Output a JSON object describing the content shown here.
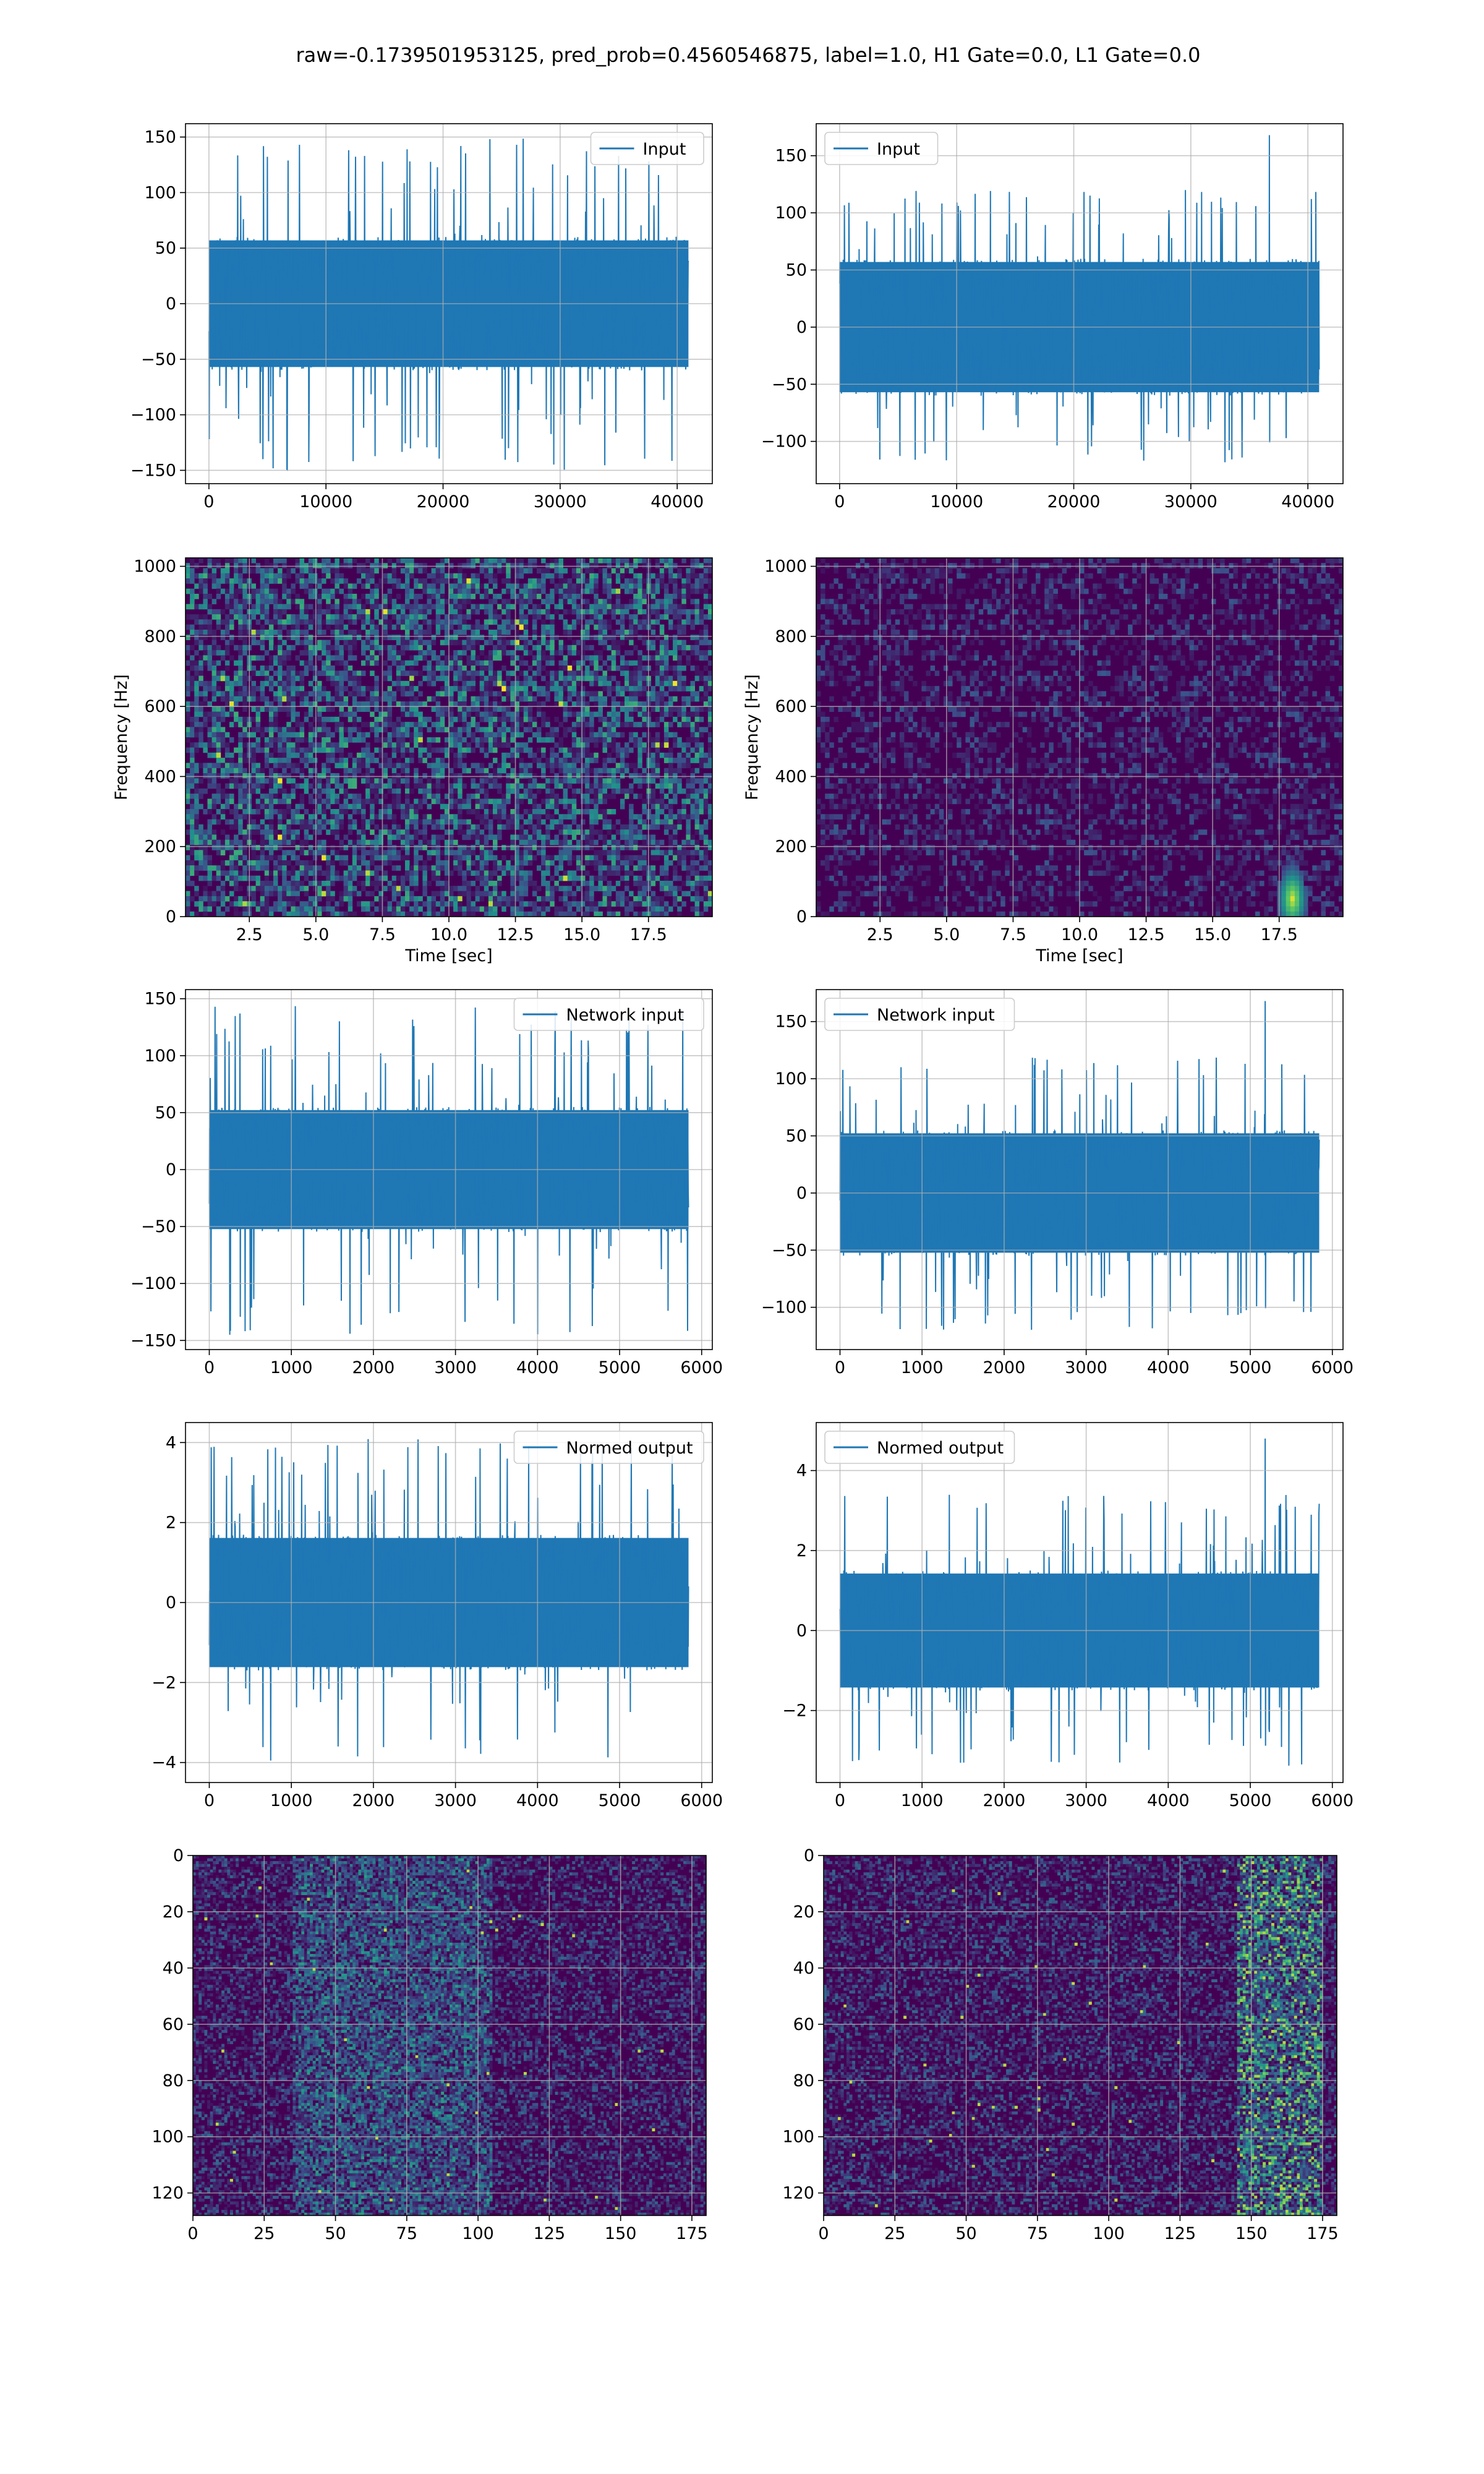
{
  "figure_title": "raw=-0.1739501953125, pred_prob=0.4560546875, label=1.0, H1 Gate=0.0, L1 Gate=0.0",
  "colors": {
    "line": "#1f77b4",
    "grid": "#b0b0b0",
    "heat_low": "#440154",
    "heat_mid": "#21918c",
    "heat_high": "#fde725"
  },
  "chart_data": [
    {
      "type": "line",
      "id": "input-left",
      "legend": "Input",
      "legend_loc": "upper right",
      "xlim": [
        -2000,
        43000
      ],
      "ylim": [
        -162,
        162
      ],
      "xticks": [
        0,
        10000,
        20000,
        30000,
        40000
      ],
      "yticks": [
        -150,
        -100,
        -50,
        0,
        50,
        100,
        150
      ],
      "x_range": [
        0,
        40960
      ],
      "n_points": 1600,
      "envelope": 60,
      "peak": 150,
      "spike": null,
      "grid": true
    },
    {
      "type": "line",
      "id": "input-right",
      "legend": "Input",
      "legend_loc": "upper left",
      "xlim": [
        -2000,
        43000
      ],
      "ylim": [
        -137,
        178
      ],
      "xticks": [
        0,
        10000,
        20000,
        30000,
        40000
      ],
      "yticks": [
        -100,
        -50,
        0,
        50,
        100,
        150
      ],
      "x_range": [
        0,
        40960
      ],
      "n_points": 1600,
      "envelope": 60,
      "peak": 120,
      "spike": {
        "x": 36700,
        "y": 168
      },
      "grid": true
    },
    {
      "type": "heatmap",
      "id": "spectrogram-left",
      "colormap": "viridis",
      "xlim": [
        0.1,
        19.9
      ],
      "ylim": [
        0,
        1024
      ],
      "xticks": [
        2.5,
        5.0,
        7.5,
        10.0,
        12.5,
        15.0,
        17.5
      ],
      "yticks": [
        0,
        200,
        400,
        600,
        800,
        1000
      ],
      "xlabel": "Time [sec]",
      "ylabel": "Frequency [Hz]",
      "grid": true,
      "intensity": "high",
      "hot_spot": null
    },
    {
      "type": "heatmap",
      "id": "spectrogram-right",
      "colormap": "viridis",
      "xlim": [
        0.1,
        19.9
      ],
      "ylim": [
        0,
        1024
      ],
      "xticks": [
        2.5,
        5.0,
        7.5,
        10.0,
        12.5,
        15.0,
        17.5
      ],
      "yticks": [
        0,
        200,
        400,
        600,
        800,
        1000
      ],
      "xlabel": "Time [sec]",
      "ylabel": "Frequency [Hz]",
      "grid": true,
      "intensity": "low",
      "hot_spot": {
        "t": 18.0,
        "f": 50
      }
    },
    {
      "type": "line",
      "id": "network-input-left",
      "legend": "Network input",
      "legend_loc": "upper right",
      "xlim": [
        -290,
        6130
      ],
      "ylim": [
        -158,
        158
      ],
      "xticks": [
        0,
        1000,
        2000,
        3000,
        4000,
        5000,
        6000
      ],
      "yticks": [
        -150,
        -100,
        -50,
        0,
        50,
        100,
        150
      ],
      "x_range": [
        0,
        5840
      ],
      "n_points": 1500,
      "envelope": 55,
      "peak": 145,
      "spike": null,
      "grid": true
    },
    {
      "type": "line",
      "id": "network-input-right",
      "legend": "Network input",
      "legend_loc": "upper left",
      "xlim": [
        -290,
        6130
      ],
      "ylim": [
        -137,
        178
      ],
      "xticks": [
        0,
        1000,
        2000,
        3000,
        4000,
        5000,
        6000
      ],
      "yticks": [
        -100,
        -50,
        0,
        50,
        100,
        150
      ],
      "x_range": [
        0,
        5840
      ],
      "n_points": 1500,
      "envelope": 55,
      "peak": 120,
      "spike": {
        "x": 5180,
        "y": 168
      },
      "grid": true
    },
    {
      "type": "line",
      "id": "normed-output-left",
      "legend": "Normed output",
      "legend_loc": "upper right",
      "xlim": [
        -290,
        6130
      ],
      "ylim": [
        -4.5,
        4.5
      ],
      "xticks": [
        0,
        1000,
        2000,
        3000,
        4000,
        5000,
        6000
      ],
      "yticks": [
        -4,
        -2,
        0,
        2,
        4
      ],
      "x_range": [
        0,
        5840
      ],
      "n_points": 1500,
      "envelope": 1.7,
      "peak": 4.1,
      "spike": null,
      "grid": true
    },
    {
      "type": "line",
      "id": "normed-output-right",
      "legend": "Normed output",
      "legend_loc": "upper left",
      "xlim": [
        -290,
        6130
      ],
      "ylim": [
        -3.8,
        5.2
      ],
      "xticks": [
        0,
        1000,
        2000,
        3000,
        4000,
        5000,
        6000
      ],
      "yticks": [
        -2,
        0,
        2,
        4
      ],
      "x_range": [
        0,
        5840
      ],
      "n_points": 1500,
      "envelope": 1.5,
      "peak": 3.4,
      "spike": {
        "x": 5180,
        "y": 4.8
      },
      "grid": true
    },
    {
      "type": "heatmap",
      "id": "feature-map-left",
      "colormap": "viridis",
      "inverted_y": true,
      "xlim": [
        0,
        180
      ],
      "ylim": [
        0,
        128
      ],
      "xticks": [
        0,
        25,
        50,
        75,
        100,
        125,
        150,
        175
      ],
      "yticks": [
        0,
        20,
        40,
        60,
        80,
        100,
        120
      ],
      "grid": true,
      "band": {
        "from": 35,
        "to": 105,
        "strength": 0.55
      }
    },
    {
      "type": "heatmap",
      "id": "feature-map-right",
      "colormap": "viridis",
      "inverted_y": true,
      "xlim": [
        0,
        180
      ],
      "ylim": [
        0,
        128
      ],
      "xticks": [
        0,
        25,
        50,
        75,
        100,
        125,
        150,
        175
      ],
      "yticks": [
        0,
        20,
        40,
        60,
        80,
        100,
        120
      ],
      "grid": true,
      "band": {
        "from": 145,
        "to": 175,
        "strength": 0.9
      }
    }
  ]
}
